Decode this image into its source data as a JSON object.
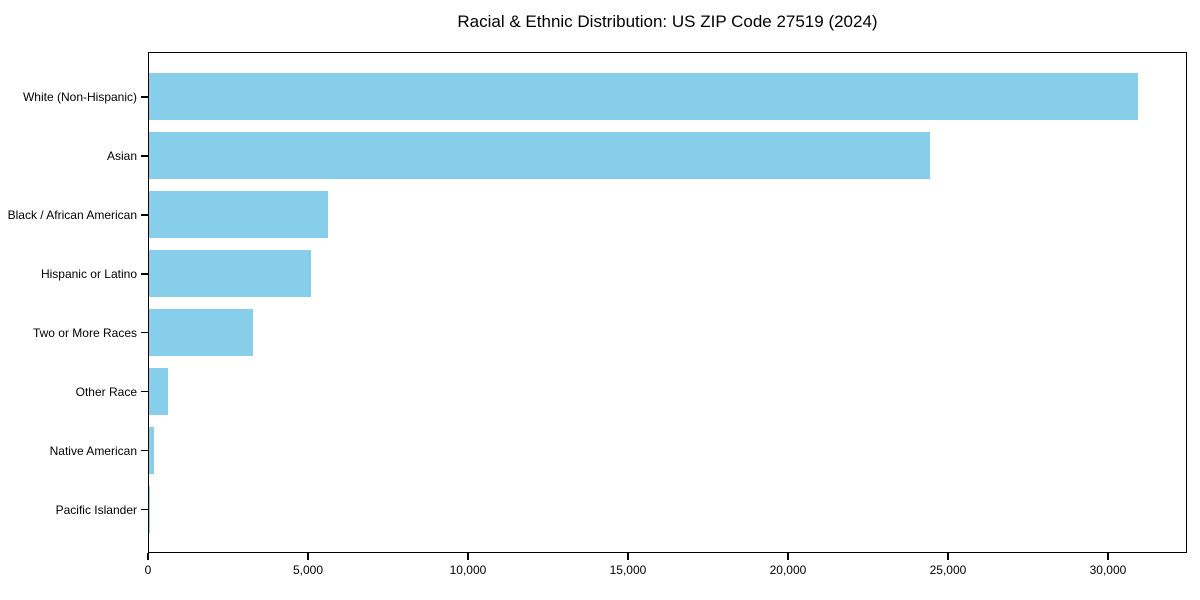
{
  "chart_data": {
    "type": "bar",
    "orientation": "horizontal",
    "title": "Racial & Ethnic Distribution: US ZIP Code 27519 (2024)",
    "categories": [
      "White (Non-Hispanic)",
      "Asian",
      "Black / African American",
      "Hispanic or Latino",
      "Two or More Races",
      "Other Race",
      "Native American",
      "Pacific Islander"
    ],
    "values": [
      30900,
      24400,
      5600,
      5050,
      3250,
      600,
      150,
      15
    ],
    "xlabel": "",
    "ylabel": "",
    "xlim": [
      0,
      32470
    ],
    "xticks": [
      0,
      5000,
      10000,
      15000,
      20000,
      25000,
      30000
    ],
    "xtick_labels": [
      "0",
      "5,000",
      "10,000",
      "15,000",
      "20,000",
      "25,000",
      "30,000"
    ],
    "bar_color": "#87CEEB",
    "spine_color": "#000000",
    "grid": false,
    "legend": "none",
    "value_labels": "none"
  }
}
